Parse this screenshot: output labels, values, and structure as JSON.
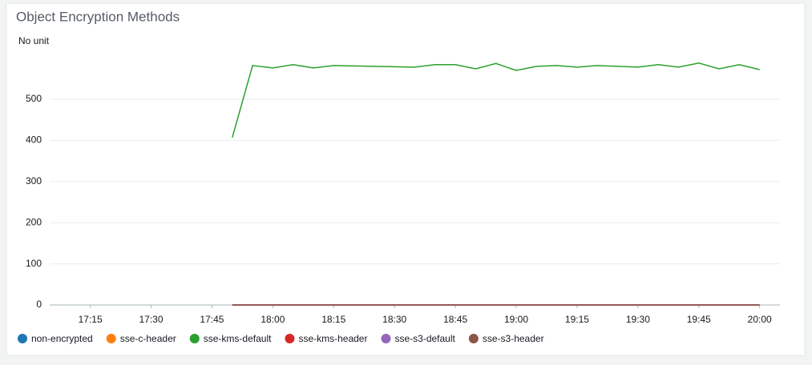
{
  "chart_data": {
    "type": "line",
    "title": "Object Encryption Methods",
    "y_label": "No unit",
    "x": [
      "17:50",
      "17:55",
      "18:00",
      "18:05",
      "18:10",
      "18:15",
      "18:20",
      "18:25",
      "18:30",
      "18:35",
      "18:40",
      "18:45",
      "18:50",
      "18:55",
      "19:00",
      "19:05",
      "19:10",
      "19:15",
      "19:20",
      "19:25",
      "19:30",
      "19:35",
      "19:40",
      "19:45",
      "19:50",
      "19:55",
      "20:00"
    ],
    "xlim": [
      "17:05",
      "20:05"
    ],
    "xticks": [
      "17:15",
      "17:30",
      "17:45",
      "18:00",
      "18:15",
      "18:30",
      "18:45",
      "19:00",
      "19:15",
      "19:30",
      "19:45",
      "20:00"
    ],
    "ylim": [
      0,
      600
    ],
    "yticks": [
      0,
      100,
      200,
      300,
      400,
      500
    ],
    "grid": true,
    "legend": "bottom",
    "series": [
      {
        "name": "non-encrypted",
        "color": "#1f77b4",
        "values": [
          0,
          0,
          0,
          0,
          0,
          0,
          0,
          0,
          0,
          0,
          0,
          0,
          0,
          0,
          0,
          0,
          0,
          0,
          0,
          0,
          0,
          0,
          0,
          0,
          0,
          0,
          0
        ]
      },
      {
        "name": "sse-c-header",
        "color": "#ff7f0e",
        "values": [
          0,
          0,
          0,
          0,
          0,
          0,
          0,
          0,
          0,
          0,
          0,
          0,
          0,
          0,
          0,
          0,
          0,
          0,
          0,
          0,
          0,
          0,
          0,
          0,
          0,
          0,
          0
        ]
      },
      {
        "name": "sse-kms-default",
        "color": "#2ca02c",
        "values": [
          407,
          582,
          576,
          584,
          576,
          582,
          581,
          580,
          579,
          578,
          584,
          584,
          574,
          587,
          570,
          580,
          582,
          578,
          582,
          580,
          578,
          584,
          578,
          588,
          574,
          584,
          572
        ]
      },
      {
        "name": "sse-kms-header",
        "color": "#d62728",
        "values": [
          0,
          0,
          0,
          0,
          0,
          0,
          0,
          0,
          0,
          0,
          0,
          0,
          0,
          0,
          0,
          0,
          0,
          0,
          0,
          0,
          0,
          0,
          0,
          0,
          0,
          0,
          0
        ]
      },
      {
        "name": "sse-s3-default",
        "color": "#9467bd",
        "values": [
          0,
          0,
          0,
          0,
          0,
          0,
          0,
          0,
          0,
          0,
          0,
          0,
          0,
          0,
          0,
          0,
          0,
          0,
          0,
          0,
          0,
          0,
          0,
          0,
          0,
          0,
          0
        ]
      },
      {
        "name": "sse-s3-header",
        "color": "#8c564b",
        "values": [
          0,
          0,
          0,
          0,
          0,
          0,
          0,
          0,
          0,
          0,
          0,
          0,
          0,
          0,
          0,
          0,
          0,
          0,
          0,
          0,
          0,
          0,
          0,
          0,
          0,
          0,
          0
        ]
      }
    ]
  }
}
